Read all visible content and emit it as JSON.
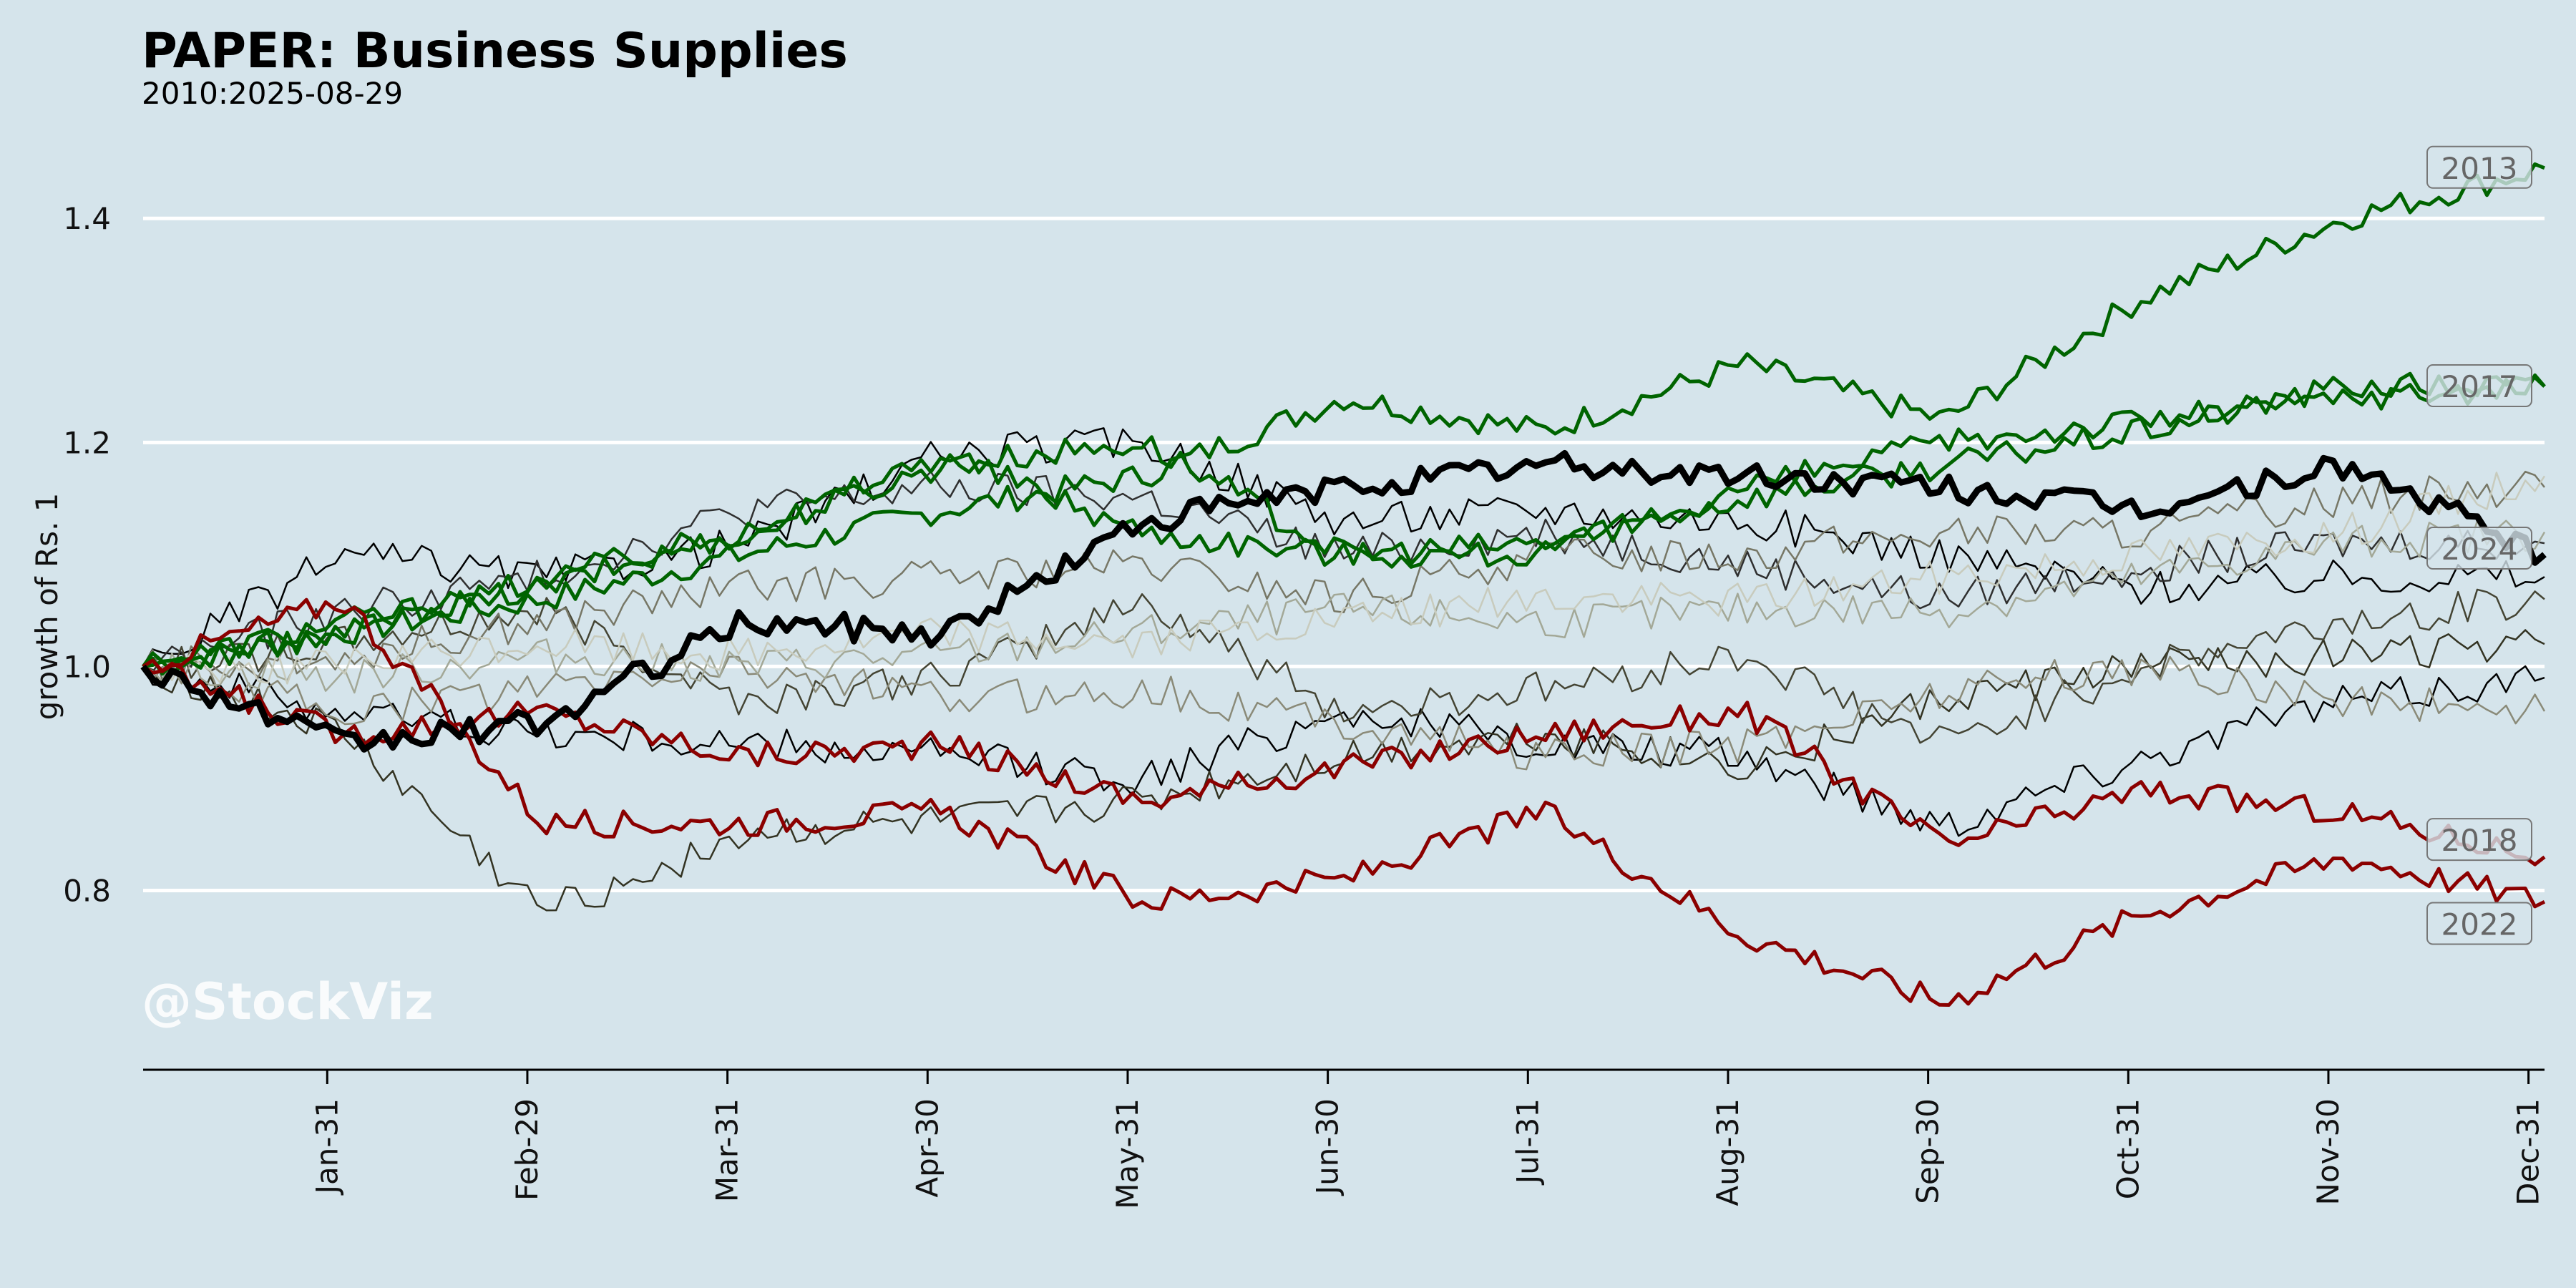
{
  "chart_data": {
    "type": "line",
    "title": "PAPER: Business Supplies",
    "subtitle": "2010:2025-08-29",
    "xlabel": "",
    "ylabel": "growth of Rs. 1",
    "ylim": [
      0.64,
      1.48
    ],
    "yticks": [
      0.8,
      1.0,
      1.2,
      1.4
    ],
    "ytick_labels": [
      "0.8",
      "1.0",
      "1.2",
      "1.4"
    ],
    "x_tick_labels": [
      "Jan-31",
      "Feb-29",
      "Mar-31",
      "Apr-30",
      "May-31",
      "Jun-30",
      "Jul-31",
      "Aug-31",
      "Sep-30",
      "Oct-31",
      "Nov-30",
      "Dec-31"
    ],
    "grid": "horizontal",
    "x_months_at": [
      0,
      1,
      2,
      3,
      4,
      5,
      6,
      7,
      8,
      9,
      10,
      11,
      12
    ],
    "series": [
      {
        "label": "2013",
        "color": "#006400",
        "width": 5,
        "values": [
          1.0,
          1.03,
          1.06,
          1.1,
          1.14,
          1.17,
          1.24,
          1.21,
          1.27,
          1.22,
          1.33,
          1.4,
          1.445
        ]
      },
      {
        "label": "2017",
        "color": "#006400",
        "width": 5,
        "values": [
          1.0,
          1.04,
          1.07,
          1.12,
          1.18,
          1.2,
          1.1,
          1.11,
          1.15,
          1.18,
          1.21,
          1.25,
          1.25
        ]
      },
      {
        "label": "",
        "color": "#006400",
        "width": 5,
        "values": [
          1.0,
          1.03,
          1.08,
          1.12,
          1.19,
          1.12,
          1.1,
          1.1,
          1.16,
          1.2,
          1.22,
          1.24,
          1.25
        ]
      },
      {
        "label": "2024",
        "color": "#000000",
        "width": 9,
        "values": [
          1.0,
          0.93,
          0.95,
          1.04,
          1.03,
          1.13,
          1.16,
          1.18,
          1.17,
          1.16,
          1.14,
          1.18,
          1.1
        ]
      },
      {
        "label": "2018",
        "color": "#8b0000",
        "width": 5,
        "values": [
          1.0,
          0.94,
          0.96,
          0.92,
          0.93,
          0.88,
          0.91,
          0.94,
          0.96,
          0.84,
          0.89,
          0.87,
          0.83
        ]
      },
      {
        "label": "2022",
        "color": "#8b0000",
        "width": 5,
        "values": [
          1.0,
          1.06,
          0.86,
          0.86,
          0.87,
          0.79,
          0.81,
          0.87,
          0.76,
          0.7,
          0.78,
          0.83,
          0.79
        ]
      },
      {
        "label": "",
        "color": "#000000",
        "width": 2.5,
        "values": [
          1.0,
          1.1,
          1.08,
          1.11,
          1.19,
          1.2,
          1.13,
          1.14,
          1.13,
          1.1,
          1.07,
          1.08,
          1.08
        ]
      },
      {
        "label": "",
        "color": "#000000",
        "width": 2.5,
        "values": [
          1.0,
          0.96,
          0.94,
          0.93,
          0.92,
          0.9,
          0.96,
          0.93,
          0.92,
          0.86,
          0.92,
          0.97,
          0.99
        ]
      },
      {
        "label": "",
        "color": "#2f2f2f",
        "width": 2.5,
        "values": [
          1.0,
          1.05,
          1.08,
          1.14,
          1.16,
          1.15,
          1.1,
          1.12,
          1.09,
          1.06,
          1.09,
          1.11,
          1.11
        ]
      },
      {
        "label": "",
        "color": "#333322",
        "width": 2.5,
        "values": [
          1.0,
          0.94,
          0.78,
          0.85,
          0.86,
          0.88,
          0.92,
          0.94,
          0.91,
          0.97,
          1.0,
          1.01,
          1.02
        ]
      },
      {
        "label": "",
        "color": "#444433",
        "width": 2.5,
        "values": [
          1.0,
          1.02,
          1.05,
          0.97,
          0.99,
          1.06,
          0.96,
          0.98,
          1.01,
          0.93,
          1.0,
          1.04,
          1.06
        ]
      },
      {
        "label": "",
        "color": "#777766",
        "width": 2.5,
        "values": [
          1.0,
          1.01,
          1.04,
          1.07,
          1.08,
          1.09,
          1.06,
          1.1,
          1.1,
          1.12,
          1.12,
          1.15,
          1.16
        ]
      },
      {
        "label": "",
        "color": "#8a8a78",
        "width": 2.5,
        "values": [
          1.0,
          0.96,
          0.98,
          1.0,
          0.97,
          0.98,
          0.95,
          0.92,
          0.93,
          0.98,
          1.0,
          0.97,
          0.96
        ]
      },
      {
        "label": "",
        "color": "#a3a897",
        "width": 2.5,
        "values": [
          1.0,
          0.99,
          1.01,
          1.0,
          1.01,
          1.03,
          1.05,
          1.04,
          1.05,
          1.05,
          1.08,
          1.11,
          1.12
        ]
      },
      {
        "label": "",
        "color": "#c8cbbd",
        "width": 2.5,
        "values": [
          1.0,
          1.0,
          1.02,
          1.01,
          1.03,
          1.02,
          1.04,
          1.06,
          1.06,
          1.08,
          1.1,
          1.12,
          1.17
        ]
      }
    ],
    "annotations": [
      "2013",
      "2017",
      "2024",
      "2018",
      "2022"
    ],
    "watermark": "@StockViz"
  }
}
